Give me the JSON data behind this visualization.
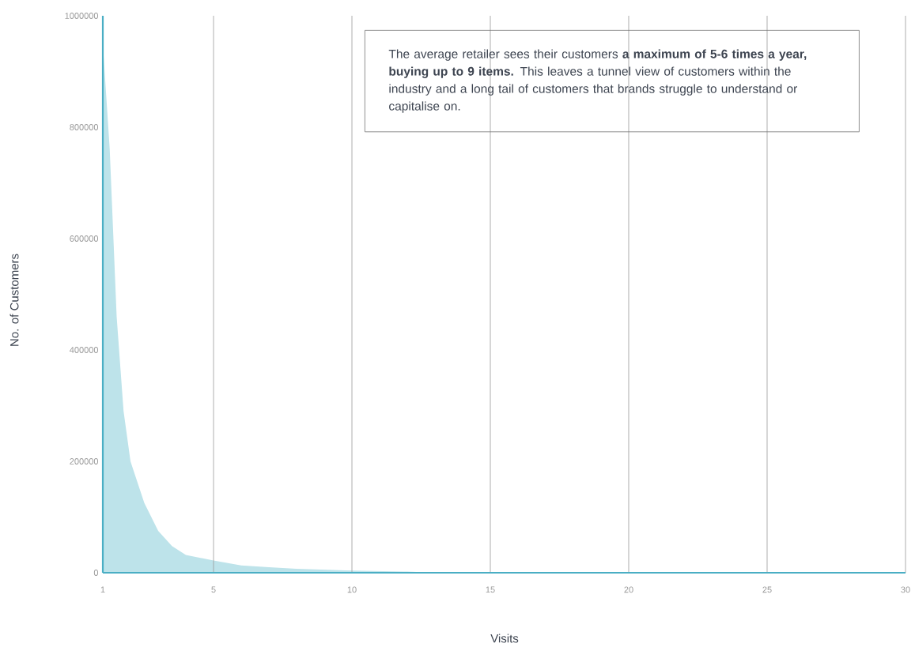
{
  "chart_data": {
    "type": "area",
    "xlabel": "Visits",
    "ylabel": "No. of Customers",
    "x": [
      1,
      1.25,
      1.5,
      1.75,
      2,
      2.5,
      3,
      3.5,
      4,
      5,
      6,
      7,
      8,
      10,
      12,
      13,
      30
    ],
    "values": [
      950000,
      760000,
      460000,
      290000,
      200000,
      125000,
      75000,
      48000,
      32000,
      22000,
      13000,
      10000,
      7000,
      4000,
      2000,
      0,
      0
    ],
    "color": "#bde3ea",
    "xlim": [
      1,
      30
    ],
    "ylim": [
      0,
      1000000
    ],
    "xticks": [
      1,
      5,
      10,
      15,
      20,
      25,
      30
    ],
    "yticks": [
      0,
      200000,
      400000,
      600000,
      800000,
      1000000
    ],
    "grid": "x",
    "annotations": [
      "The average retailer sees their customers **a maximum of 5-6 times a year, buying up to 9 items.** This leaves a tunnel view of customers within the industry and a long tail of customers that brands struggle to understand or capitalise on."
    ]
  }
}
